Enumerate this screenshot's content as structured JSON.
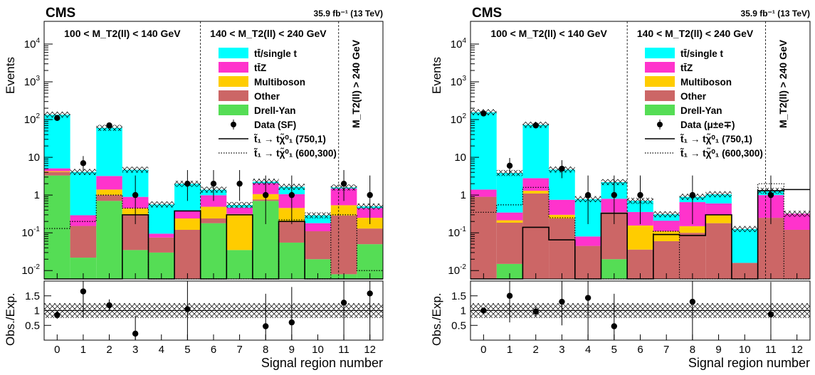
{
  "colors": {
    "ttbar": "#00ffff",
    "ttz": "#ff33cc",
    "multiboson": "#ffcc00",
    "other": "#cc6666",
    "dy": "#55dd55",
    "data": "#000000"
  },
  "chart_data": [
    {
      "type": "bar",
      "stacked": true,
      "log_scale": true,
      "experiment_label": "CMS",
      "lumi_label": "35.9 fb⁻¹ (13 TeV)",
      "ylabel": "Events",
      "xlabel": "Signal region number",
      "ratio_ylabel": "Obs./Exp.",
      "ylim": [
        0.006,
        40000
      ],
      "ratio_ylim": [
        0.0,
        2.0
      ],
      "categories": [
        "0",
        "1",
        "2",
        "3",
        "4",
        "5",
        "6",
        "7",
        "8",
        "9",
        "10",
        "11",
        "12"
      ],
      "region_labels": [
        "100 < M_T2(ll) < 140 GeV",
        "140 < M_T2(ll) < 240 GeV",
        "M_T2(ll) > 240 GeV"
      ],
      "legend": [
        "tt̄/single t",
        "tt̄Z",
        "Multiboson",
        "Other",
        "Drell-Yan",
        "Data (SF)",
        "t̃₁ → tχ̃⁰₁ (750,1)",
        "t̃₁ → tχ̃⁰₁ (600,300)"
      ],
      "series": [
        {
          "name": "Drell-Yan",
          "key": "dy",
          "values": [
            3.3,
            0.022,
            0.7,
            0.035,
            0.03,
            0.0,
            0.18,
            0.035,
            0.7,
            0.055,
            0.02,
            0.008,
            0.05
          ]
        },
        {
          "name": "Other",
          "key": "other",
          "values": [
            0.8,
            0.13,
            0.3,
            0.26,
            0.045,
            0.12,
            0.06,
            0.0,
            0.06,
            0.15,
            0.09,
            0.28,
            0.08
          ]
        },
        {
          "name": "Multiboson",
          "key": "multiboson",
          "values": [
            0.2,
            0.0,
            0.4,
            0.15,
            0.0,
            0.12,
            0.25,
            0.28,
            0.3,
            0.25,
            0.0,
            0.25,
            0.12
          ]
        },
        {
          "name": "tt̄Z",
          "key": "ttz",
          "values": [
            0.8,
            0.14,
            1.8,
            0.45,
            0.02,
            0.15,
            0.5,
            0.15,
            1.0,
            0.6,
            0.07,
            0.95,
            0.2
          ]
        },
        {
          "name": "tt̄/single t",
          "key": "ttbar",
          "values": [
            130,
            3.8,
            57,
            3.8,
            0.47,
            1.6,
            0.4,
            0.08,
            0.2,
            0.6,
            0.11,
            0.1,
            0.05
          ]
        }
      ],
      "data": {
        "name": "Data (SF)",
        "values": [
          110,
          7,
          70,
          1,
          null,
          2,
          2,
          2,
          1,
          1,
          null,
          2,
          1
        ],
        "err_up": [
          11,
          3.8,
          9.4,
          2.3,
          null,
          2.6,
          2.6,
          2.6,
          2.3,
          2.3,
          null,
          2.6,
          2.3
        ],
        "err_down": [
          10,
          2.6,
          8.4,
          0.83,
          null,
          1.3,
          1.3,
          1.3,
          0.83,
          0.83,
          null,
          1.3,
          0.83
        ]
      },
      "signal": [
        {
          "name": "t̃₁ → tχ̃⁰₁ (750,1)",
          "style": "solid",
          "values": [
            0.005,
            0.005,
            0.005,
            0.3,
            0.005,
            0.38,
            0.005,
            0.3,
            0.005,
            0.2,
            0.005,
            0.005,
            0.005
          ]
        },
        {
          "name": "t̃₁ → tχ̃⁰₁ (600,300)",
          "style": "dotted",
          "values": [
            0.13,
            0.2,
            1.0,
            0.45,
            0.005,
            0.005,
            0.005,
            0.005,
            0.005,
            0.22,
            0.005,
            0.3,
            0.01
          ]
        }
      ],
      "ratio": [
        0.85,
        1.65,
        1.18,
        0.22,
        null,
        1.05,
        null,
        null,
        0.47,
        0.6,
        null,
        1.27,
        1.58
      ],
      "ratio_err": [
        0.13,
        0.9,
        0.2,
        0.6,
        null,
        1.5,
        null,
        null,
        1.1,
        1.2,
        null,
        1.3,
        1.9
      ]
    },
    {
      "type": "bar",
      "stacked": true,
      "log_scale": true,
      "experiment_label": "CMS",
      "lumi_label": "35.9 fb⁻¹ (13 TeV)",
      "ylabel": "Events",
      "xlabel": "Signal region number",
      "ratio_ylabel": "Obs./Exp.",
      "ylim": [
        0.006,
        40000
      ],
      "ratio_ylim": [
        0.0,
        2.0
      ],
      "categories": [
        "0",
        "1",
        "2",
        "3",
        "4",
        "5",
        "6",
        "7",
        "8",
        "9",
        "10",
        "11",
        "12"
      ],
      "region_labels": [
        "100 < M_T2(ll) < 140 GeV",
        "140 < M_T2(ll) < 240 GeV",
        "M_T2(ll) > 240 GeV"
      ],
      "legend": [
        "tt̄/single t",
        "tt̄Z",
        "Multiboson",
        "Other",
        "Drell-Yan",
        "Data (μ±e∓)",
        "t̃₁ → tχ̃⁰₁ (750,1)",
        "t̃₁ → tχ̃⁰₁ (600,300)"
      ],
      "series": [
        {
          "name": "Drell-Yan",
          "key": "dy",
          "values": [
            0.0,
            0.015,
            0.0,
            0.0,
            0.0,
            0.02,
            0.0,
            0.0,
            0.0,
            0.0,
            0.0,
            0.0,
            0.0
          ]
        },
        {
          "name": "Other",
          "key": "other",
          "values": [
            0.9,
            0.17,
            1.1,
            0.24,
            0.045,
            0.33,
            0.036,
            0.06,
            0.1,
            0.18,
            0.016,
            0.25,
            0.12
          ]
        },
        {
          "name": "Multiboson",
          "key": "multiboson",
          "values": [
            0.0,
            0.03,
            0.2,
            0.06,
            0.0,
            0.0,
            0.12,
            0.05,
            0.05,
            0.12,
            0.0,
            0.0,
            0.0
          ]
        },
        {
          "name": "tt̄Z",
          "key": "ttz",
          "values": [
            0.5,
            0.13,
            1.5,
            0.45,
            0.035,
            0.45,
            0.2,
            0.1,
            0.5,
            0.3,
            0.0,
            0.75,
            0.2
          ]
        },
        {
          "name": "tt̄/single t",
          "key": "ttbar",
          "values": [
            155,
            3.5,
            70,
            4.0,
            0.7,
            1.4,
            0.35,
            0.1,
            0.25,
            0.45,
            0.11,
            0.3,
            0.0
          ]
        }
      ],
      "data": {
        "name": "Data (μ±e∓)",
        "values": [
          145,
          6,
          70,
          5,
          1,
          1,
          1,
          null,
          1,
          null,
          null,
          1,
          null
        ],
        "err_up": [
          12,
          3.6,
          9.4,
          3.4,
          2.3,
          2.3,
          2.3,
          null,
          2.3,
          null,
          null,
          2.3,
          null
        ],
        "err_down": [
          12,
          2.4,
          8.4,
          2.2,
          0.83,
          0.83,
          0.83,
          null,
          0.83,
          null,
          null,
          0.83,
          null
        ]
      },
      "signal": [
        {
          "name": "t̃₁ → tχ̃⁰₁ (750,1)",
          "style": "solid",
          "values": [
            0.005,
            0.005,
            0.14,
            0.065,
            0.005,
            0.33,
            0.005,
            0.09,
            0.085,
            0.3,
            0.005,
            1.3,
            1.4
          ]
        },
        {
          "name": "t̃₁ → tχ̃⁰₁ (600,300)",
          "style": "dotted",
          "values": [
            0.35,
            0.55,
            1.6,
            0.25,
            0.005,
            0.005,
            0.005,
            0.11,
            0.005,
            0.005,
            0.005,
            2.0,
            0.005
          ]
        }
      ],
      "ratio": [
        1.0,
        1.5,
        0.97,
        1.3,
        1.43,
        0.47,
        null,
        null,
        1.3,
        null,
        null,
        0.87,
        null
      ],
      "ratio_err": [
        0.1,
        0.9,
        0.15,
        0.8,
        2.0,
        1.1,
        null,
        null,
        1.5,
        null,
        null,
        1.1,
        null
      ]
    }
  ]
}
